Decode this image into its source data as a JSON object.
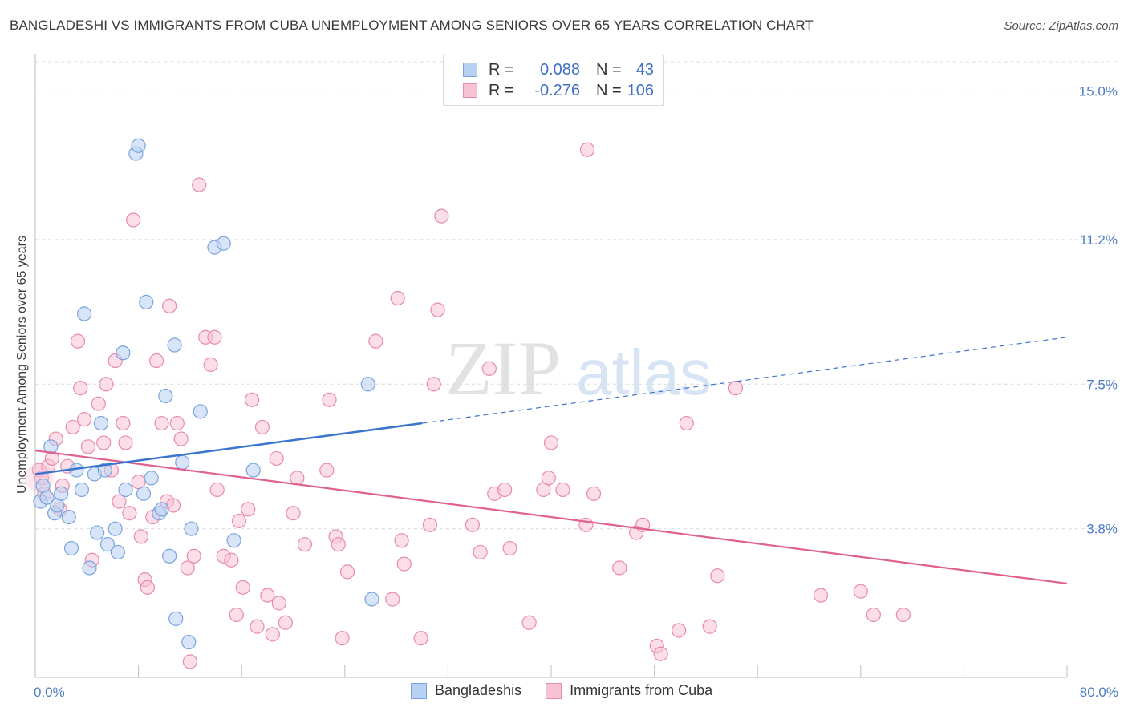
{
  "title": "BANGLADESHI VS IMMIGRANTS FROM CUBA UNEMPLOYMENT AMONG SENIORS OVER 65 YEARS CORRELATION CHART",
  "source": "Source: ZipAtlas.com",
  "watermark": {
    "zip": "ZIP",
    "atlas": "atlas"
  },
  "colors": {
    "blue_fill": "#b8d0f2",
    "blue_stroke": "#7aa3dd",
    "blue_line": "#3a74cf",
    "pink_fill": "#f7c3d3",
    "pink_stroke": "#e98aab",
    "pink_line": "#e0608f",
    "tick_text": "#4a7cc7",
    "grid": "#dcdcdc"
  },
  "legend": {
    "rows": [
      {
        "r_label": "R =",
        "r_value": "0.088",
        "n_label": "N =",
        "n_value": "43",
        "color": "blue"
      },
      {
        "r_label": "R =",
        "r_value": "-0.276",
        "n_label": "N =",
        "n_value": "106",
        "color": "pink"
      }
    ]
  },
  "bottom_legend": [
    "Bangladeshis",
    "Immigrants from Cuba"
  ],
  "chart_data": {
    "type": "scatter",
    "title": "BANGLADESHI VS IMMIGRANTS FROM CUBA UNEMPLOYMENT AMONG SENIORS OVER 65 YEARS CORRELATION CHART",
    "xlabel": "",
    "ylabel": "Unemployment Among Seniors over 65 years",
    "xlim": [
      0,
      80
    ],
    "ylim": [
      0,
      15.75
    ],
    "x_tick_labels": [
      "0.0%",
      "80.0%"
    ],
    "y_ticks": [
      3.8,
      7.5,
      11.2,
      15.0
    ],
    "y_tick_labels": [
      "3.8%",
      "7.5%",
      "11.2%",
      "15.0%"
    ],
    "grid": true,
    "legend_position": "top-center",
    "series": [
      {
        "name": "Bangladeshis",
        "color": "blue",
        "trend": {
          "x0": 0,
          "y0": 5.2,
          "x1": 30,
          "y1": 6.5,
          "dashed_to_x": 80,
          "dashed_to_y": 8.7
        },
        "points": [
          [
            0.4,
            4.5
          ],
          [
            0.6,
            4.9
          ],
          [
            0.9,
            4.6
          ],
          [
            1.2,
            5.9
          ],
          [
            1.5,
            4.2
          ],
          [
            1.7,
            4.4
          ],
          [
            2.0,
            4.7
          ],
          [
            2.6,
            4.1
          ],
          [
            2.8,
            3.3
          ],
          [
            3.2,
            5.3
          ],
          [
            3.6,
            4.8
          ],
          [
            3.8,
            9.3
          ],
          [
            4.2,
            2.8
          ],
          [
            4.6,
            5.2
          ],
          [
            4.8,
            3.7
          ],
          [
            5.1,
            6.5
          ],
          [
            5.4,
            5.3
          ],
          [
            5.6,
            3.4
          ],
          [
            6.2,
            3.8
          ],
          [
            6.4,
            3.2
          ],
          [
            6.8,
            8.3
          ],
          [
            7.0,
            4.8
          ],
          [
            7.8,
            13.4
          ],
          [
            8.0,
            13.6
          ],
          [
            8.4,
            4.7
          ],
          [
            8.6,
            9.6
          ],
          [
            9.0,
            5.1
          ],
          [
            9.6,
            4.2
          ],
          [
            9.8,
            4.3
          ],
          [
            10.1,
            7.2
          ],
          [
            10.4,
            3.1
          ],
          [
            10.8,
            8.5
          ],
          [
            10.9,
            1.5
          ],
          [
            11.4,
            5.5
          ],
          [
            11.9,
            0.9
          ],
          [
            12.1,
            3.8
          ],
          [
            12.8,
            6.8
          ],
          [
            13.9,
            11.0
          ],
          [
            14.6,
            11.1
          ],
          [
            15.4,
            3.5
          ],
          [
            16.9,
            5.3
          ],
          [
            25.8,
            7.5
          ],
          [
            26.1,
            2.0
          ]
        ]
      },
      {
        "name": "Immigrants from Cuba",
        "color": "pink",
        "trend": {
          "x0": 0,
          "y0": 5.8,
          "x1": 80,
          "y1": 2.4
        },
        "points": [
          [
            0.3,
            5.3
          ],
          [
            0.5,
            5.1
          ],
          [
            0.7,
            4.7
          ],
          [
            1.0,
            5.4
          ],
          [
            1.3,
            5.6
          ],
          [
            1.6,
            6.1
          ],
          [
            1.9,
            4.3
          ],
          [
            2.1,
            4.9
          ],
          [
            2.5,
            5.4
          ],
          [
            2.9,
            6.4
          ],
          [
            3.3,
            8.6
          ],
          [
            3.5,
            7.4
          ],
          [
            3.8,
            6.6
          ],
          [
            4.1,
            5.9
          ],
          [
            4.4,
            3.0
          ],
          [
            4.9,
            7.0
          ],
          [
            5.3,
            6.0
          ],
          [
            5.5,
            7.5
          ],
          [
            5.9,
            5.3
          ],
          [
            6.2,
            8.1
          ],
          [
            6.5,
            4.5
          ],
          [
            6.8,
            6.5
          ],
          [
            7.0,
            6.0
          ],
          [
            7.3,
            4.2
          ],
          [
            7.6,
            11.7
          ],
          [
            8.0,
            5.0
          ],
          [
            8.2,
            3.6
          ],
          [
            8.5,
            2.5
          ],
          [
            8.7,
            2.3
          ],
          [
            9.1,
            4.1
          ],
          [
            9.4,
            8.1
          ],
          [
            9.8,
            6.5
          ],
          [
            10.2,
            4.5
          ],
          [
            10.4,
            9.5
          ],
          [
            10.7,
            4.4
          ],
          [
            11.0,
            6.5
          ],
          [
            11.3,
            6.1
          ],
          [
            11.8,
            2.8
          ],
          [
            12.0,
            0.4
          ],
          [
            12.3,
            3.1
          ],
          [
            12.7,
            12.6
          ],
          [
            13.2,
            8.7
          ],
          [
            13.6,
            8.0
          ],
          [
            13.9,
            8.7
          ],
          [
            14.1,
            4.8
          ],
          [
            14.6,
            3.1
          ],
          [
            15.2,
            3.0
          ],
          [
            15.6,
            1.6
          ],
          [
            15.8,
            4.0
          ],
          [
            16.1,
            2.3
          ],
          [
            16.5,
            4.3
          ],
          [
            16.8,
            7.1
          ],
          [
            17.2,
            1.3
          ],
          [
            17.6,
            6.4
          ],
          [
            18.0,
            2.1
          ],
          [
            18.4,
            1.1
          ],
          [
            18.7,
            5.6
          ],
          [
            18.9,
            1.9
          ],
          [
            19.4,
            1.4
          ],
          [
            20.0,
            4.2
          ],
          [
            20.3,
            5.1
          ],
          [
            20.9,
            3.4
          ],
          [
            22.6,
            5.3
          ],
          [
            22.8,
            7.1
          ],
          [
            23.3,
            3.6
          ],
          [
            23.5,
            3.4
          ],
          [
            23.8,
            1.0
          ],
          [
            24.2,
            2.7
          ],
          [
            26.4,
            8.6
          ],
          [
            27.7,
            2.0
          ],
          [
            28.1,
            9.7
          ],
          [
            28.4,
            3.5
          ],
          [
            28.6,
            2.9
          ],
          [
            29.9,
            1.0
          ],
          [
            30.6,
            3.9
          ],
          [
            30.9,
            7.5
          ],
          [
            31.2,
            9.4
          ],
          [
            31.5,
            11.8
          ],
          [
            33.9,
            3.9
          ],
          [
            34.5,
            3.2
          ],
          [
            35.2,
            7.9
          ],
          [
            35.6,
            4.7
          ],
          [
            36.4,
            4.8
          ],
          [
            36.8,
            3.3
          ],
          [
            38.3,
            1.4
          ],
          [
            39.4,
            4.8
          ],
          [
            39.8,
            5.1
          ],
          [
            40.0,
            6.0
          ],
          [
            40.9,
            4.8
          ],
          [
            42.7,
            3.9
          ],
          [
            42.8,
            13.5
          ],
          [
            43.3,
            4.7
          ],
          [
            45.3,
            2.8
          ],
          [
            46.6,
            3.7
          ],
          [
            47.1,
            3.9
          ],
          [
            48.2,
            0.8
          ],
          [
            48.5,
            0.6
          ],
          [
            49.9,
            1.2
          ],
          [
            50.5,
            6.5
          ],
          [
            52.3,
            1.3
          ],
          [
            52.9,
            2.6
          ],
          [
            54.3,
            7.4
          ],
          [
            60.9,
            2.1
          ],
          [
            64.0,
            2.2
          ],
          [
            65.0,
            1.6
          ],
          [
            67.3,
            1.6
          ]
        ]
      }
    ]
  }
}
